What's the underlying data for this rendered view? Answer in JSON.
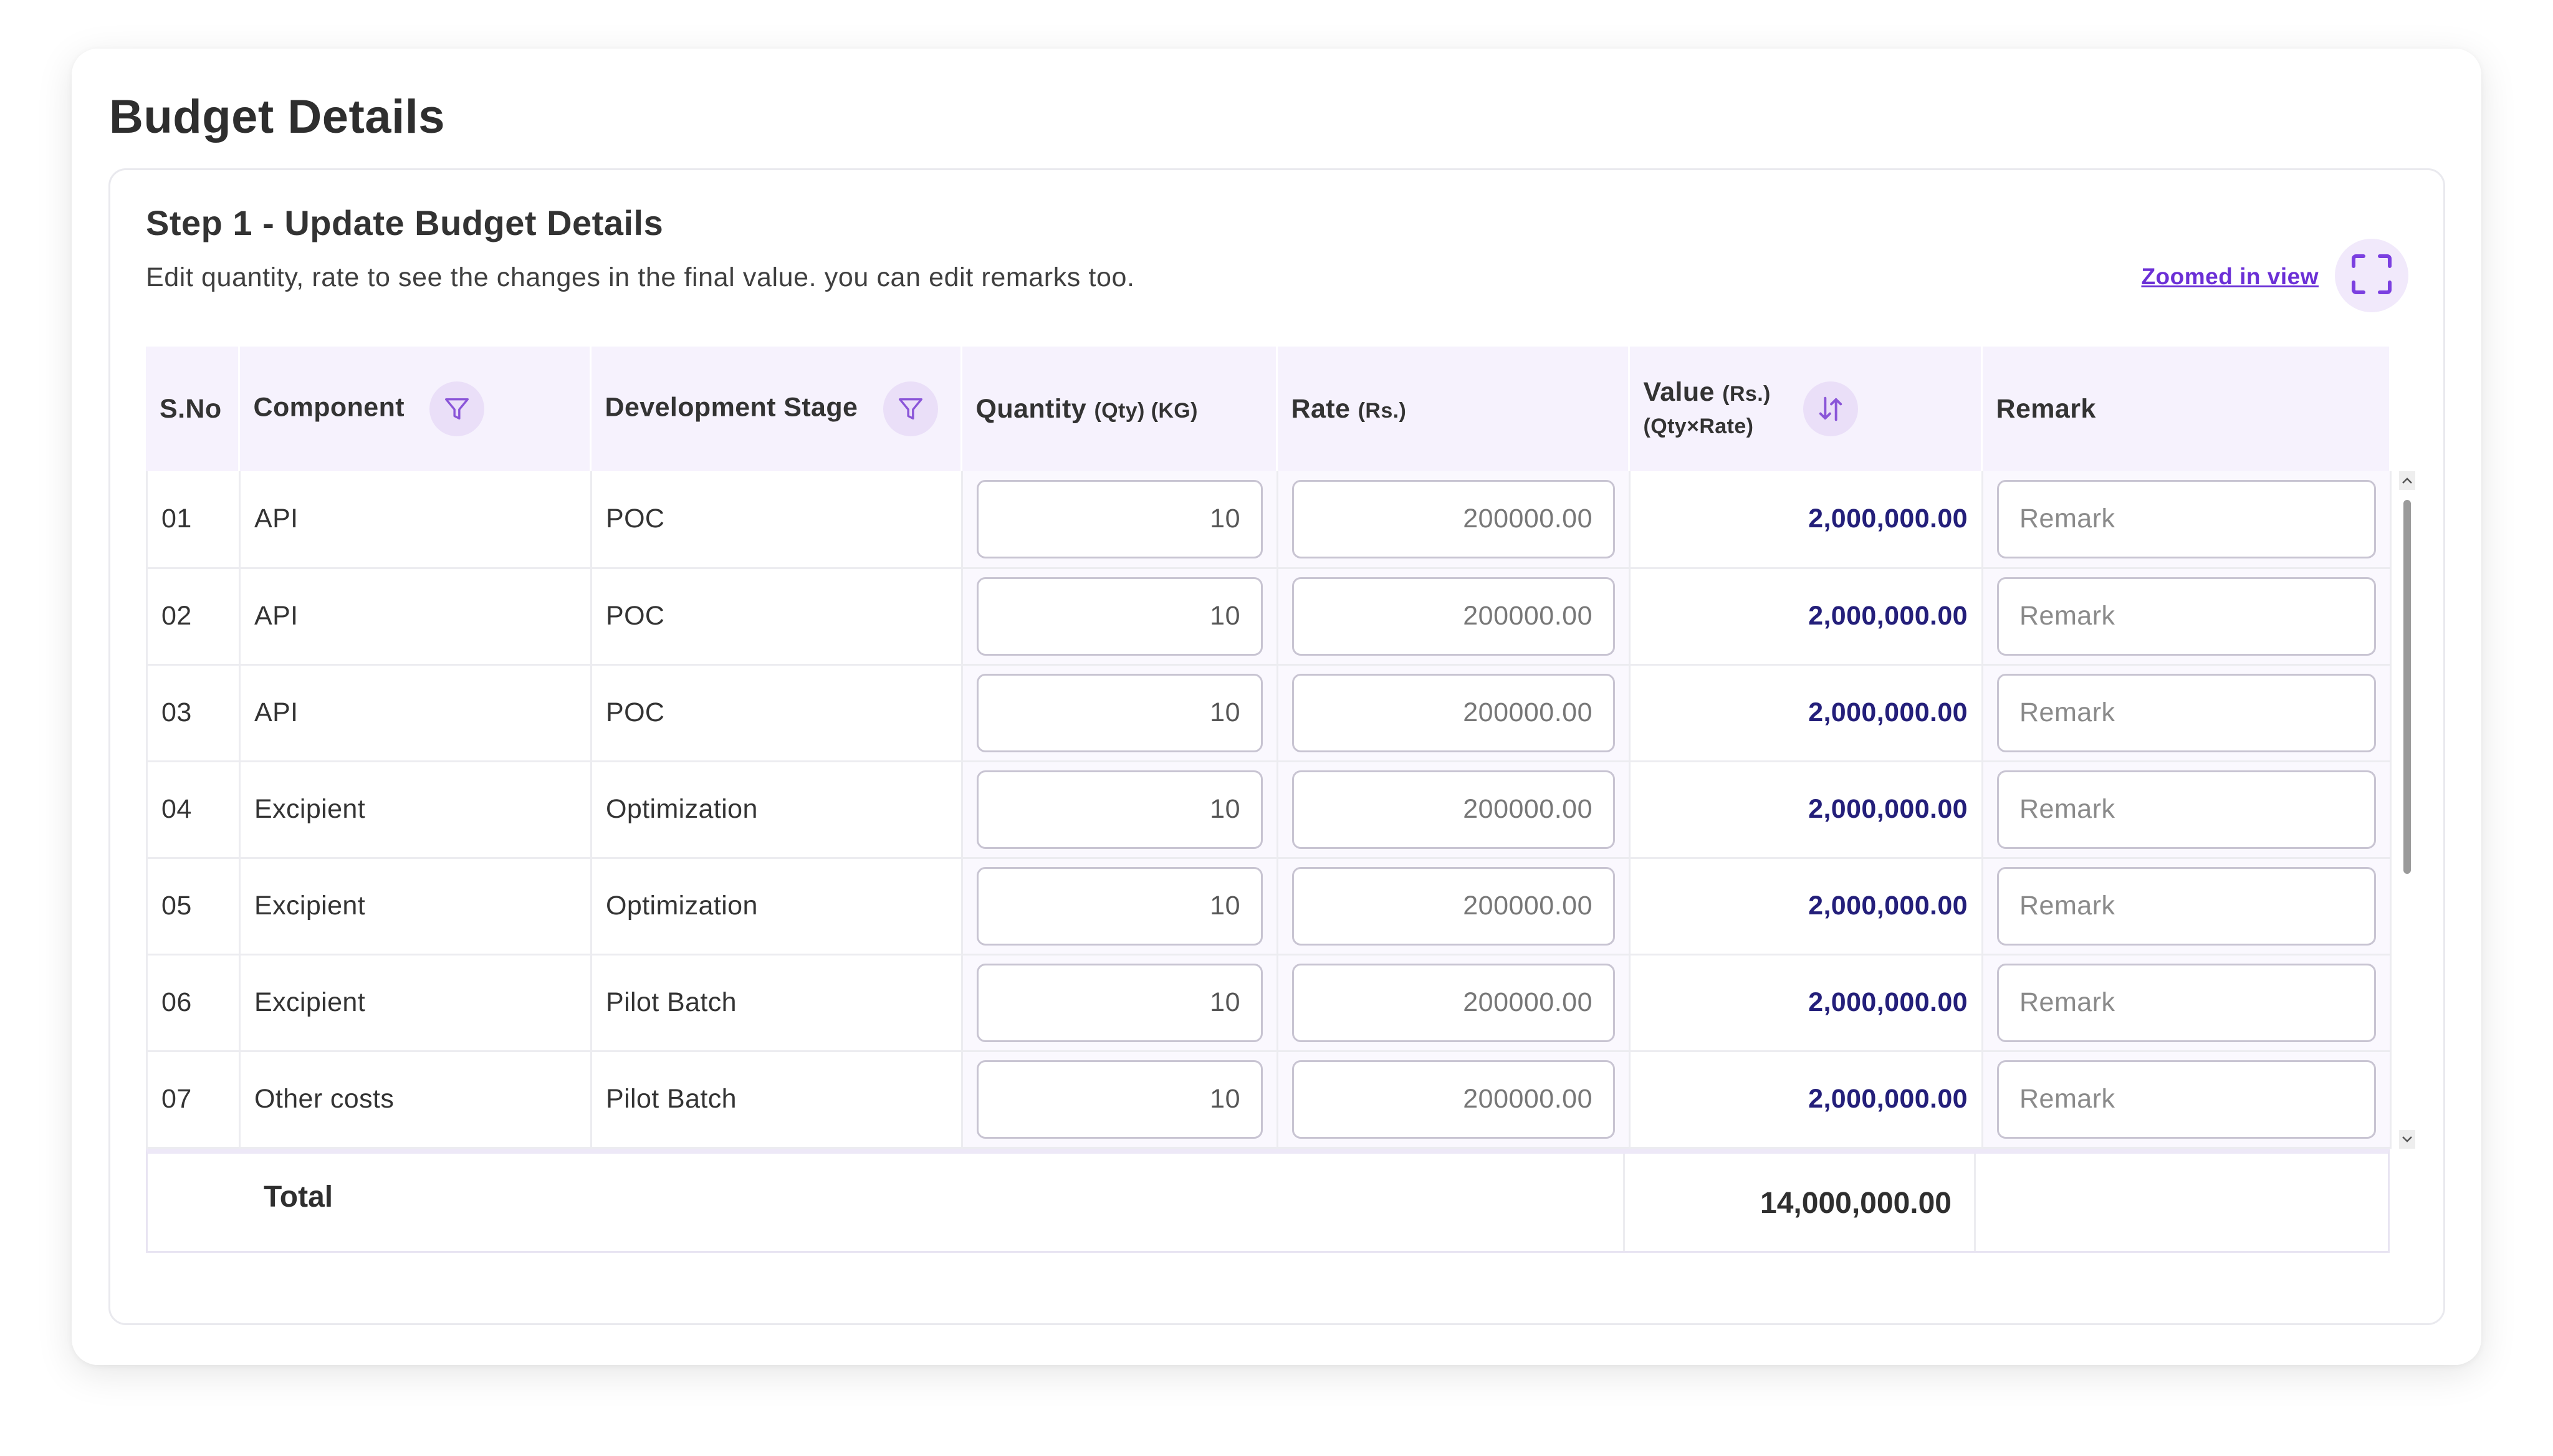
{
  "page": {
    "title": "Budget Details"
  },
  "step": {
    "title": "Step 1 - Update Budget Details",
    "description": "Edit quantity, rate to see the changes in the final value. you can edit remarks too.",
    "zoom_link": "Zoomed in view",
    "zoom_icon": "expand-icon"
  },
  "table": {
    "headers": {
      "sno": "S.No",
      "component": "Component",
      "stage": "Development Stage",
      "quantity": "Quantity",
      "quantity_unit": "(Qty) (KG)",
      "rate": "Rate",
      "rate_unit": "(Rs.)",
      "value": "Value",
      "value_unit": "(Rs.)",
      "value_formula": "(Qty×Rate)",
      "remark": "Remark"
    },
    "rows": [
      {
        "sno": "01",
        "component": "API",
        "stage": "POC",
        "qty": "10",
        "rate": "200000.00",
        "value": "2,000,000.00",
        "remark_placeholder": "Remark"
      },
      {
        "sno": "02",
        "component": "API",
        "stage": "POC",
        "qty": "10",
        "rate": "200000.00",
        "value": "2,000,000.00",
        "remark_placeholder": "Remark"
      },
      {
        "sno": "03",
        "component": "API",
        "stage": "POC",
        "qty": "10",
        "rate": "200000.00",
        "value": "2,000,000.00",
        "remark_placeholder": "Remark"
      },
      {
        "sno": "04",
        "component": "Excipient",
        "stage": "Optimization",
        "qty": "10",
        "rate": "200000.00",
        "value": "2,000,000.00",
        "remark_placeholder": "Remark"
      },
      {
        "sno": "05",
        "component": "Excipient",
        "stage": "Optimization",
        "qty": "10",
        "rate": "200000.00",
        "value": "2,000,000.00",
        "remark_placeholder": "Remark"
      },
      {
        "sno": "06",
        "component": "Excipient",
        "stage": "Pilot Batch",
        "qty": "10",
        "rate": "200000.00",
        "value": "2,000,000.00",
        "remark_placeholder": "Remark"
      },
      {
        "sno": "07",
        "component": "Other costs",
        "stage": "Pilot Batch",
        "qty": "10",
        "rate": "200000.00",
        "value": "2,000,000.00",
        "remark_placeholder": "Remark"
      }
    ],
    "total": {
      "label": "Total",
      "value": "14,000,000.00"
    }
  },
  "colors": {
    "accent": "#6b2fd6",
    "header_bg": "#f6f2fd",
    "value_text": "#241f7a",
    "icon_bg": "#eadff8"
  }
}
